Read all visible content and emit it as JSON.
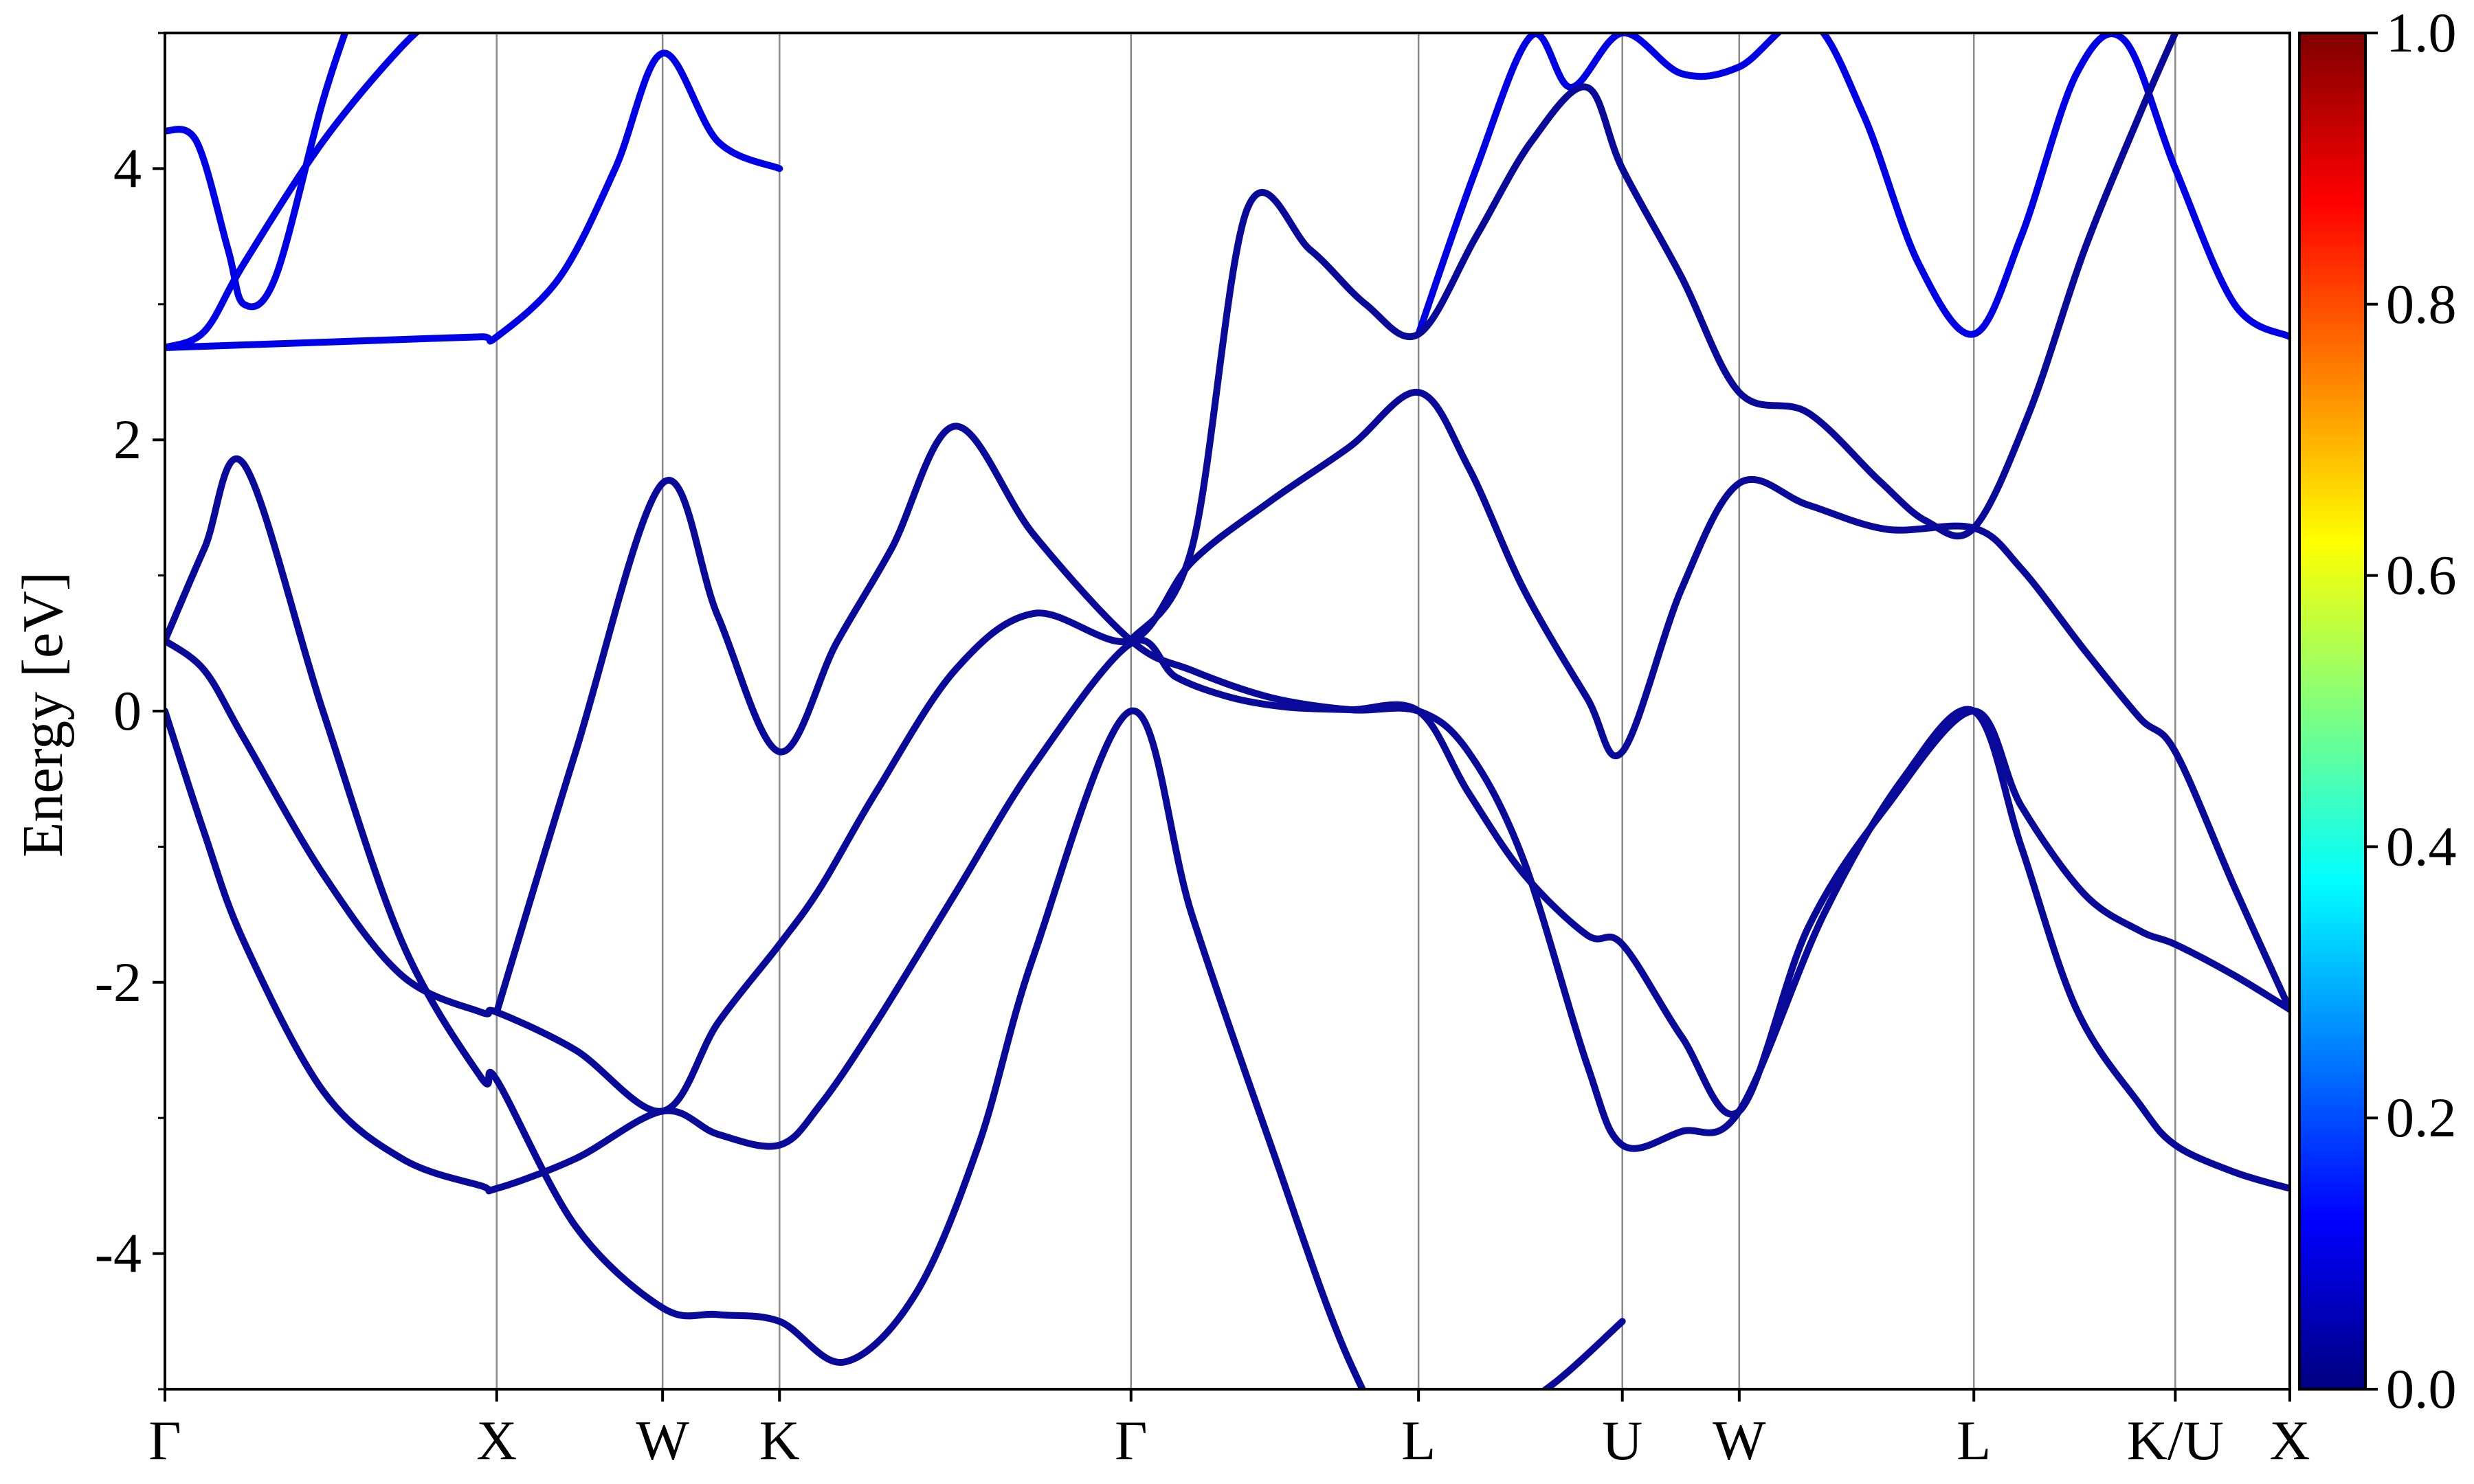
{
  "chart_data": {
    "type": "line",
    "title": "",
    "xlabel": "",
    "ylabel": "Energy [eV]",
    "ylim": [
      -5,
      5
    ],
    "xlim": [
      0,
      26.9
    ],
    "grid": "vertical lines at high-symmetry points",
    "legend": "none",
    "y_ticks": [
      -4,
      -2,
      0,
      2,
      4
    ],
    "y_tick_labels": [
      "-4",
      "-2",
      "0",
      "2",
      "4"
    ],
    "y_minor_ticks": [
      -5,
      -3,
      -1,
      1,
      3,
      5
    ],
    "k_points": [
      {
        "label": "Γ",
        "x": 0.0
      },
      {
        "label": "X",
        "x": 4.2
      },
      {
        "label": "W",
        "x": 6.3
      },
      {
        "label": "K",
        "x": 7.78
      },
      {
        "label": "Γ",
        "x": 12.23
      },
      {
        "label": "L",
        "x": 15.87
      },
      {
        "label": "U",
        "x": 18.45
      },
      {
        "label": "W",
        "x": 19.93
      },
      {
        "label": "L",
        "x": 22.9
      },
      {
        "label": "K/U",
        "x": 25.45
      },
      {
        "label": "X",
        "x": 26.9
      }
    ],
    "colorbar": {
      "min": 0.0,
      "max": 1.0,
      "ticks": [
        0.0,
        0.2,
        0.4,
        0.6,
        0.8,
        1.0
      ],
      "tick_labels": [
        "0.0",
        "0.2",
        "0.4",
        "0.6",
        "0.8",
        "1.0"
      ],
      "colormap": [
        "#00007f",
        "#0000ff",
        "#007fff",
        "#00ffff",
        "#7fff7f",
        "#ffff00",
        "#ff7f00",
        "#ff0000",
        "#7f0000"
      ]
    },
    "series": [
      {
        "color": "#0a0a9a",
        "x": [
          0,
          0.5,
          1.0,
          2.0,
          3.0,
          4.0,
          4.2,
          5.2,
          6.3,
          7.0,
          7.78,
          8.3,
          9.0,
          10.0,
          11.0,
          12.23,
          12.8,
          13.5,
          14.2,
          15.0,
          15.87,
          16.5,
          17.2,
          18.0,
          18.45,
          19.2,
          19.93,
          20.8,
          21.8,
          22.9,
          23.5,
          24.3,
          25.0,
          25.45,
          26.2,
          26.9
        ],
        "y": [
          0.0,
          -0.9,
          -1.7,
          -2.8,
          -3.3,
          -3.5,
          -3.52,
          -3.3,
          -2.95,
          -3.12,
          -3.2,
          -2.9,
          -2.3,
          -1.35,
          -0.4,
          0.5,
          0.25,
          0.1,
          0.03,
          0.01,
          0.0,
          -0.6,
          -1.2,
          -1.65,
          -1.72,
          -2.4,
          -2.95,
          -1.6,
          -0.7,
          0.0,
          -0.7,
          -1.35,
          -1.62,
          -1.72,
          -1.95,
          -2.2
        ]
      },
      {
        "color": "#0a0a9a",
        "x": [
          0,
          0.5,
          1.0,
          2.0,
          3.0,
          4.0,
          4.2,
          5.2,
          6.3,
          7.0,
          7.78,
          8.3,
          9.0,
          10.0,
          11.0,
          12.23,
          13.0,
          14.0,
          15.0,
          15.87,
          16.5,
          17.2,
          18.0,
          18.45,
          19.2,
          19.93,
          20.8,
          21.8,
          22.9,
          23.5,
          24.3,
          25.0,
          25.45,
          26.2,
          26.9
        ],
        "y": [
          0.52,
          0.3,
          -0.2,
          -1.2,
          -1.95,
          -2.22,
          -2.22,
          -2.5,
          -2.95,
          -2.3,
          -1.72,
          -1.3,
          -0.6,
          0.3,
          0.72,
          0.52,
          1.1,
          1.55,
          1.95,
          2.35,
          1.8,
          0.9,
          0.1,
          -0.3,
          0.9,
          1.68,
          1.52,
          1.34,
          1.35,
          1.05,
          0.45,
          -0.05,
          -0.3,
          -1.3,
          -2.2
        ]
      },
      {
        "color": "#0a0a9a",
        "x": [
          0,
          0.5,
          1.0,
          2.0,
          3.0,
          4.0,
          4.2,
          5.2,
          6.3,
          7.0,
          7.78,
          8.6,
          9.5,
          10.3,
          11.0,
          12.23,
          13.0,
          14.0,
          15.0,
          15.87,
          16.7,
          17.6,
          18.45
        ],
        "y": [
          0.52,
          1.2,
          1.82,
          0.0,
          -1.7,
          -2.7,
          -2.72,
          -3.8,
          -4.4,
          -4.45,
          -4.5,
          -4.8,
          -4.3,
          -3.2,
          -1.8,
          0.0,
          -1.5,
          -3.2,
          -4.8,
          -5.6,
          -5.3,
          -4.95,
          -4.5
        ]
      },
      {
        "color": "#0a0a9a",
        "x": [
          4.2,
          5.2,
          6.3,
          7.0,
          7.78,
          8.5,
          9.2,
          10.0,
          11.0,
          12.23,
          13.0,
          14.0,
          15.0,
          15.87,
          16.5,
          17.2,
          18.0,
          18.45,
          19.2,
          19.93,
          21.0,
          22.0,
          22.9,
          23.5,
          24.2,
          25.0,
          25.45,
          26.2,
          26.9
        ],
        "y": [
          -2.22,
          -0.3,
          1.68,
          0.7,
          -0.3,
          0.5,
          1.2,
          2.1,
          1.3,
          0.52,
          0.3,
          0.1,
          0.01,
          0.0,
          -0.3,
          -1.1,
          -2.6,
          -3.2,
          -3.1,
          -2.95,
          -1.5,
          -0.5,
          0.0,
          -1.0,
          -2.2,
          -2.9,
          -3.2,
          -3.4,
          -3.52
        ]
      },
      {
        "color": "#0000e6",
        "x": [
          0,
          1.0,
          2.0,
          3.0,
          4.0,
          4.2,
          5.0,
          5.7,
          6.3,
          7.0,
          7.78
        ],
        "y": [
          2.68,
          2.7,
          2.72,
          2.74,
          2.76,
          2.76,
          3.2,
          4.0,
          4.85,
          4.2,
          4.0
        ]
      },
      {
        "color": "#0000e6",
        "x": [
          0,
          0.4,
          0.8,
          1.0,
          1.4,
          2.0,
          2.4
        ],
        "y": [
          4.28,
          4.2,
          3.4,
          3.0,
          3.2,
          4.5,
          5.2
        ]
      },
      {
        "color": "#0000e6",
        "x": [
          0,
          0.5,
          1.0,
          2.0,
          3.0,
          3.6
        ],
        "y": [
          2.68,
          2.8,
          3.3,
          4.2,
          4.9,
          5.2
        ]
      },
      {
        "color": "#0000e6",
        "x": [
          15.87,
          16.6,
          17.3,
          17.8,
          18.45,
          19.2,
          19.93,
          20.8,
          21.5,
          22.2,
          22.9,
          23.5,
          24.2,
          24.8,
          25.45,
          26.2,
          26.9
        ],
        "y": [
          2.78,
          4.0,
          4.98,
          4.6,
          5.0,
          4.7,
          4.75,
          5.1,
          4.4,
          3.3,
          2.78,
          3.5,
          4.7,
          4.95,
          4.0,
          3.0,
          2.76
        ]
      },
      {
        "color": "#0a0a9a",
        "x": [
          12.23,
          13.0,
          13.7,
          14.5,
          15.2,
          15.87,
          16.6,
          17.3,
          18.0,
          18.45,
          19.2,
          19.93,
          20.8,
          21.7,
          22.3,
          22.9,
          23.6,
          24.3,
          25.0,
          25.45
        ],
        "y": [
          0.52,
          1.2,
          3.7,
          3.4,
          3.0,
          2.78,
          3.5,
          4.2,
          4.6,
          4.0,
          3.2,
          2.35,
          2.2,
          1.7,
          1.4,
          1.35,
          2.2,
          3.4,
          4.4,
          5.0
        ]
      }
    ]
  }
}
